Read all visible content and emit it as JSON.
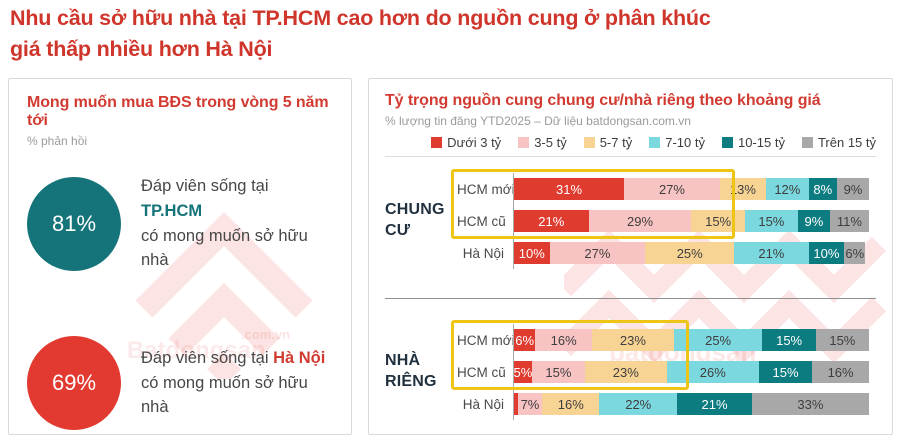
{
  "page_title": {
    "line1": "Nhu cầu sở hữu nhà tại TP.HCM cao hơn do nguồn cung ở phân khúc",
    "line2": "giá thấp nhiều hơn Hà Nội"
  },
  "brand_colors": {
    "red": "#d23b31",
    "teal": "#15747a",
    "highlight_yellow": "#eec417"
  },
  "watermark": {
    "brand": "Batdongsan",
    "domain": ".com.vn"
  },
  "left_panel": {
    "title": "Mong muốn mua BĐS trong vòng 5 năm tới",
    "subtitle": "% phản hồi",
    "stats": [
      {
        "value": "81%",
        "circle_color": "#15747a",
        "line1_prefix": "Đáp viên sống tại ",
        "highlight": "TP.HCM",
        "highlight_color": "#15747a",
        "line2": "có mong muốn sở hữu nhà"
      },
      {
        "value": "69%",
        "circle_color": "#e23a30",
        "line1_prefix": "Đáp viên sống tại ",
        "highlight": "Hà Nội",
        "highlight_color": "#d23b31",
        "line2": "có mong muốn sở hữu nhà"
      }
    ]
  },
  "right_panel": {
    "title": "Tỷ trọng nguồn cung chung cư/nhà riêng theo khoảng giá",
    "subtitle": "% lượng tin đăng YTD2025 – Dữ liệu batdongsan.com.vn",
    "chart_data": {
      "type": "bar",
      "stacked": true,
      "orientation": "horizontal",
      "unit": "%",
      "legend_position": "top-right",
      "legend": [
        {
          "label": "Dưới 3 tỷ",
          "color": "#df3b2f",
          "label_color": "#ffffff"
        },
        {
          "label": "3-5 tỷ",
          "color": "#f8c3c3",
          "label_color": "#3e3e3e"
        },
        {
          "label": "5-7 tỷ",
          "color": "#f8d494",
          "label_color": "#3e3e3e"
        },
        {
          "label": "7-10 tỷ",
          "color": "#7bd8de",
          "label_color": "#3e3e3e"
        },
        {
          "label": "10-15 tỷ",
          "color": "#0d7c81",
          "label_color": "#ffffff"
        },
        {
          "label": "Trên 15 tỷ",
          "color": "#a8a8a8",
          "label_color": "#3e3e3e"
        }
      ],
      "groups": [
        {
          "name": "CHUNG CƯ",
          "rows": [
            {
              "label": "HCM mới",
              "values": [
                31,
                27,
                13,
                12,
                8,
                9
              ]
            },
            {
              "label": "HCM cũ",
              "values": [
                21,
                29,
                15,
                15,
                9,
                11
              ]
            },
            {
              "label": "Hà Nội",
              "values": [
                10,
                27,
                25,
                21,
                10,
                6
              ]
            }
          ],
          "highlight_rows": [
            0,
            1
          ],
          "highlight_segments": 2
        },
        {
          "name": "NHÀ RIÊNG",
          "rows": [
            {
              "label": "HCM mới",
              "values": [
                6,
                16,
                23,
                25,
                15,
                15
              ]
            },
            {
              "label": "HCM cũ",
              "values": [
                5,
                15,
                23,
                26,
                15,
                16
              ]
            },
            {
              "label": "Hà Nội",
              "values": [
                1,
                7,
                16,
                22,
                21,
                33
              ]
            }
          ],
          "highlight_rows": [
            0,
            1
          ],
          "highlight_segments": 3
        }
      ]
    }
  }
}
